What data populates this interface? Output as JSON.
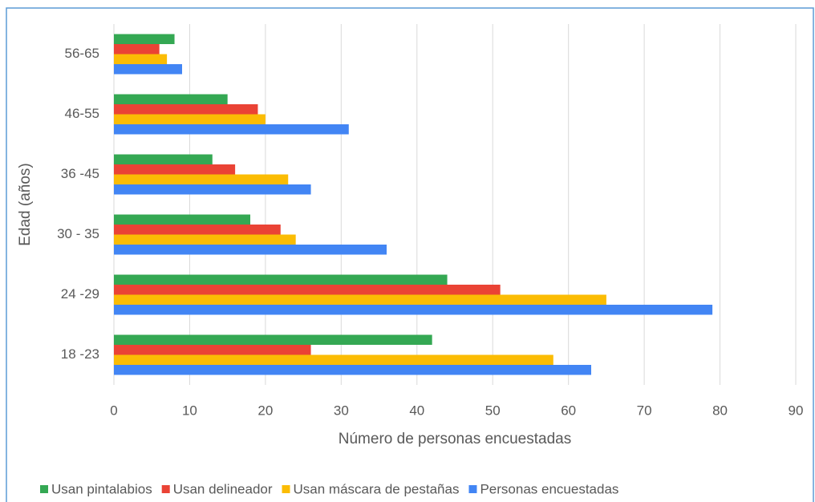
{
  "chart_data": {
    "type": "bar",
    "orientation": "horizontal",
    "xlabel": "Número de personas encuestadas",
    "ylabel": "Edad (años)",
    "categories": [
      "18 -23",
      "24 -29",
      "30 - 35",
      "36 -45",
      "46-55",
      "56-65"
    ],
    "series": [
      {
        "name": "Usan pintalabios",
        "color": "#34a853",
        "values": [
          42,
          44,
          18,
          13,
          15,
          8
        ]
      },
      {
        "name": "Usan delineador",
        "color": "#ea4335",
        "values": [
          26,
          51,
          22,
          16,
          19,
          6
        ]
      },
      {
        "name": "Usan máscara de pestañas",
        "color": "#fbbc04",
        "values": [
          58,
          65,
          24,
          23,
          20,
          7
        ]
      },
      {
        "name": "Personas encuestadas",
        "color": "#4285f4",
        "values": [
          63,
          79,
          36,
          26,
          31,
          9
        ]
      }
    ],
    "xlim": [
      0,
      90
    ],
    "xticks": [
      0,
      10,
      20,
      30,
      40,
      50,
      60,
      70,
      80,
      90
    ],
    "grid": true,
    "legend": "bottom"
  }
}
